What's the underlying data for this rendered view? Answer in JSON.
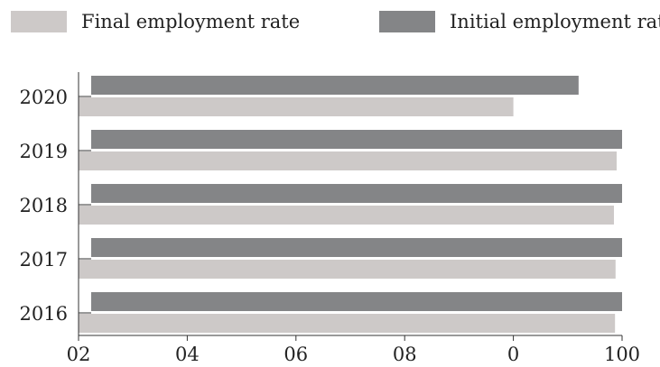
{
  "chart_data": {
    "type": "bar",
    "orientation": "horizontal",
    "categories": [
      "2020",
      "2019",
      "2018",
      "2017",
      "2016"
    ],
    "series": [
      {
        "name": "Initial employment rat",
        "color": "#848587",
        "values": [
          92,
          100,
          100,
          100,
          100
        ]
      },
      {
        "name": "Final employment rate",
        "color": "#cdc9c8",
        "values": [
          80,
          99,
          98.5,
          98.8,
          98.7
        ]
      }
    ],
    "legend": {
      "placement": "top",
      "order": [
        1,
        0
      ]
    },
    "xaxis": {
      "min": 0,
      "max": 100,
      "ticks": [
        0,
        20,
        40,
        60,
        80,
        100
      ],
      "tick_labels": [
        "02",
        "04",
        "06",
        "08",
        "0",
        "100"
      ]
    },
    "title": "",
    "xlabel": "",
    "ylabel": "",
    "grid": false
  }
}
